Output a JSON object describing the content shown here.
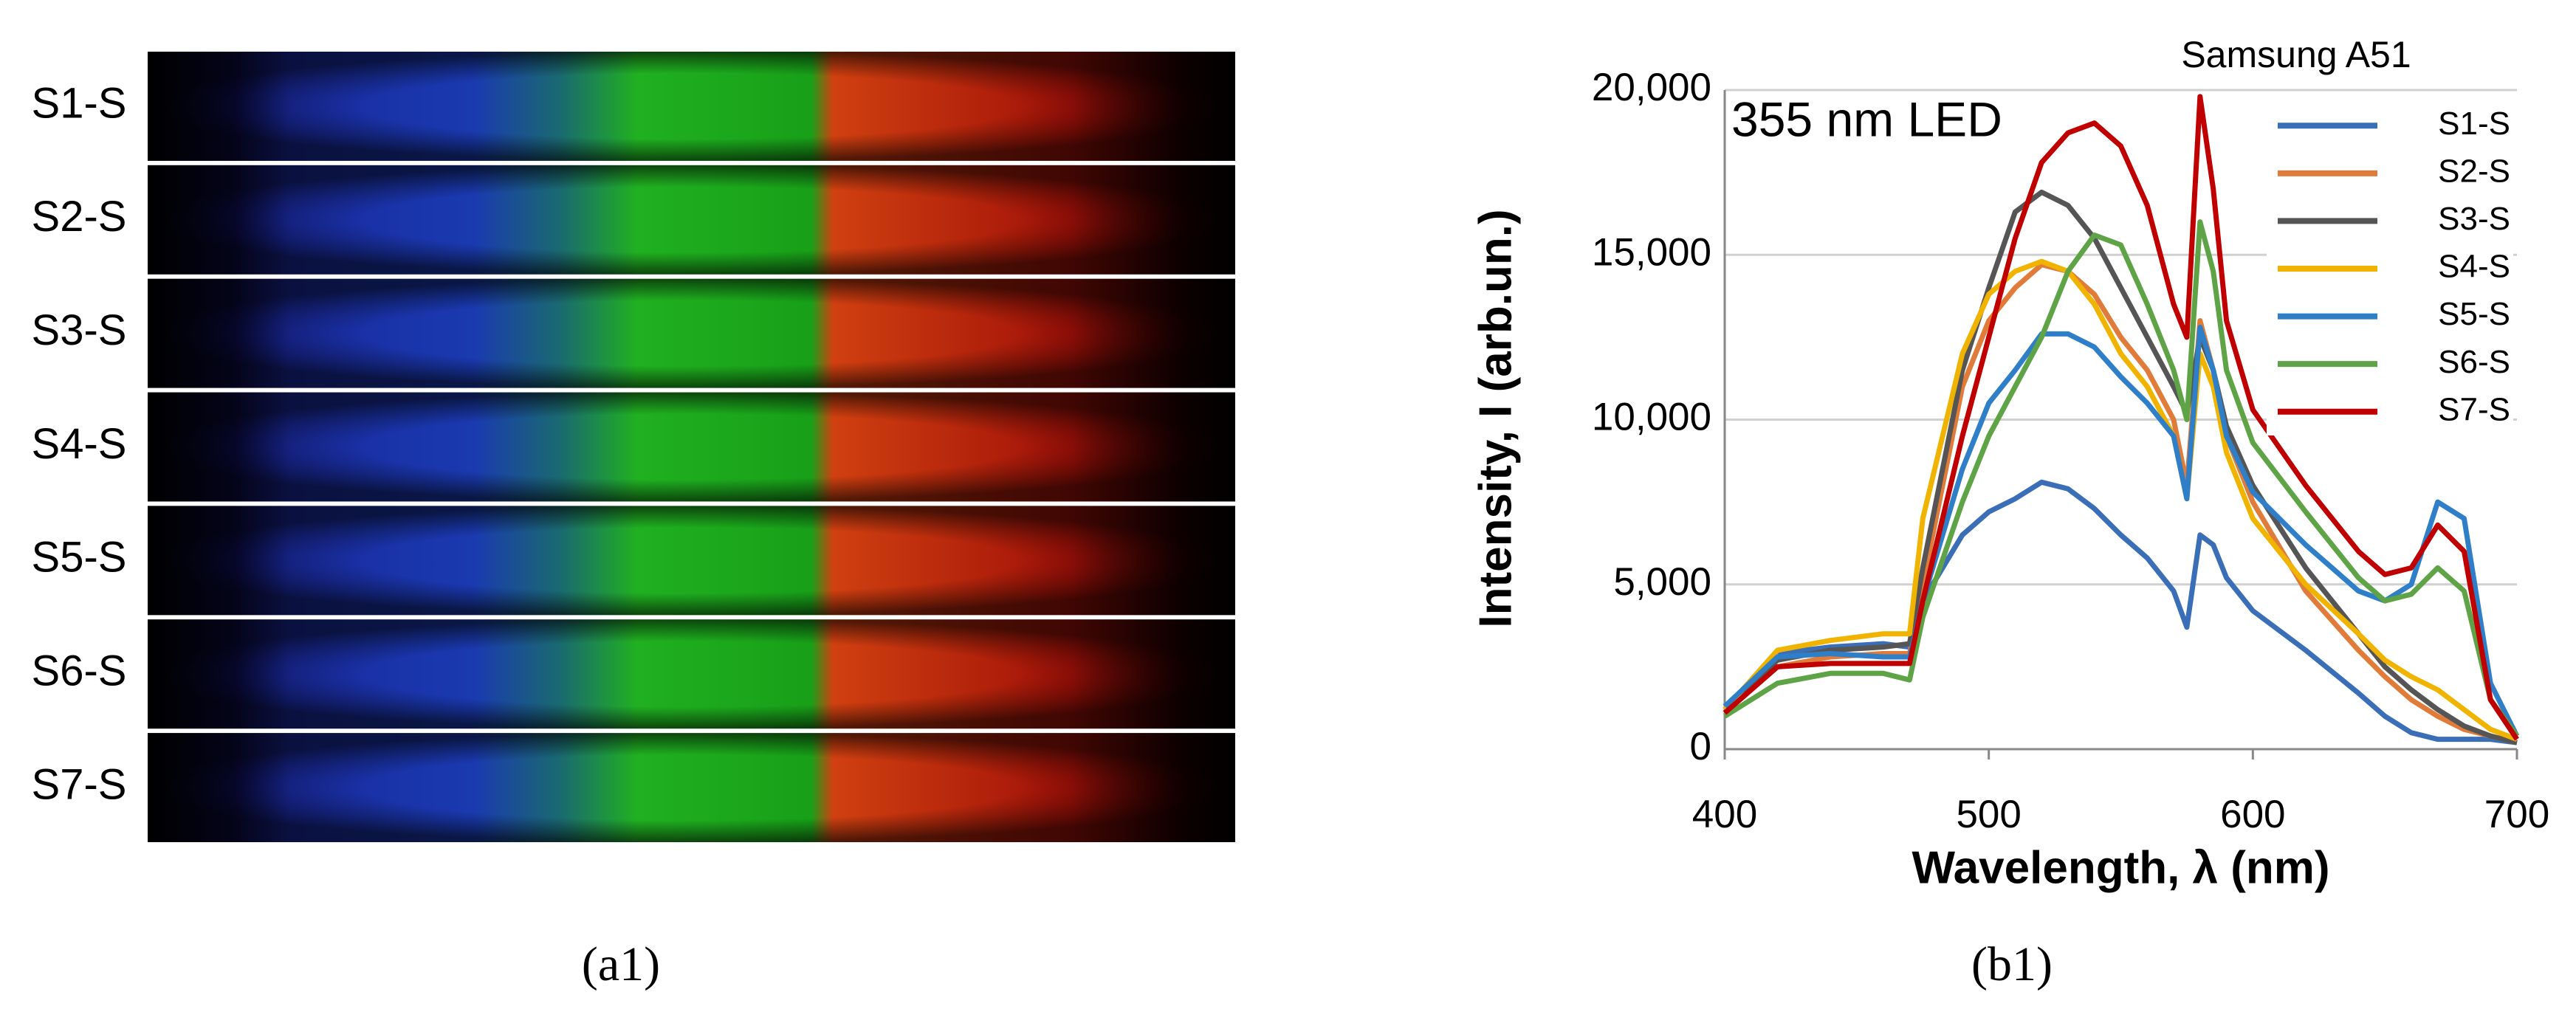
{
  "image_panel": {
    "rows": [
      "S1-S",
      "S2-S",
      "S3-S",
      "S4-S",
      "S5-S",
      "S6-S",
      "S7-S"
    ],
    "caption": "(a1)"
  },
  "chart_data": {
    "type": "line",
    "title": "Samsung A51",
    "annotation": "355 nm LED",
    "x_label": "Wavelength, λ (nm)",
    "y_label": "Intensity, I (arb.un.)",
    "caption": "(b1)",
    "x": [
      400,
      420,
      440,
      460,
      470,
      475,
      490,
      500,
      510,
      520,
      530,
      540,
      550,
      560,
      570,
      575,
      580,
      585,
      590,
      600,
      620,
      640,
      650,
      660,
      670,
      680,
      690,
      700
    ],
    "series": [
      {
        "name": "S1-S",
        "color": "#3a6fb8",
        "values": [
          1200,
          2900,
          3100,
          3200,
          3100,
          4500,
          6500,
          7200,
          7600,
          8100,
          7900,
          7300,
          6500,
          5800,
          4800,
          3700,
          6500,
          6200,
          5200,
          4200,
          3000,
          1700,
          1000,
          500,
          300,
          300,
          300,
          200
        ]
      },
      {
        "name": "S2-S",
        "color": "#e07b39",
        "values": [
          1100,
          2500,
          2800,
          2900,
          2900,
          5000,
          11000,
          13000,
          14000,
          14700,
          14500,
          13800,
          12500,
          11500,
          10000,
          8000,
          13000,
          11500,
          9500,
          7500,
          4800,
          3000,
          2200,
          1500,
          1000,
          600,
          400,
          200
        ]
      },
      {
        "name": "S3-S",
        "color": "#555555",
        "values": [
          1300,
          2700,
          3000,
          3100,
          3200,
          5500,
          11500,
          14000,
          16300,
          16900,
          16500,
          15500,
          14000,
          12500,
          11000,
          10200,
          12500,
          11500,
          9800,
          8000,
          5500,
          3500,
          2500,
          1800,
          1200,
          700,
          400,
          200
        ]
      },
      {
        "name": "S4-S",
        "color": "#f0b400",
        "values": [
          1200,
          3000,
          3300,
          3500,
          3500,
          7000,
          12000,
          13800,
          14500,
          14800,
          14500,
          13500,
          12000,
          11000,
          9500,
          7600,
          12000,
          11000,
          9000,
          7000,
          5000,
          3500,
          2700,
          2200,
          1800,
          1200,
          600,
          300
        ]
      },
      {
        "name": "S5-S",
        "color": "#2e7fc8",
        "values": [
          1300,
          2800,
          2900,
          2800,
          2800,
          4500,
          8500,
          10500,
          11500,
          12600,
          12600,
          12200,
          11300,
          10500,
          9500,
          7600,
          12800,
          11500,
          9500,
          7800,
          6200,
          4800,
          4500,
          5000,
          7500,
          7000,
          2000,
          400
        ]
      },
      {
        "name": "S6-S",
        "color": "#5ea345",
        "values": [
          1000,
          2000,
          2300,
          2300,
          2100,
          4000,
          7500,
          9500,
          11000,
          12500,
          14500,
          15600,
          15300,
          13500,
          11500,
          10000,
          16000,
          14500,
          11500,
          9300,
          7200,
          5200,
          4500,
          4700,
          5500,
          4800,
          1500,
          400
        ]
      },
      {
        "name": "S7-S",
        "color": "#c00000",
        "values": [
          1100,
          2500,
          2600,
          2600,
          2600,
          4500,
          9500,
          12500,
          15500,
          17800,
          18700,
          19000,
          18300,
          16500,
          13500,
          12500,
          19800,
          17000,
          13000,
          10300,
          8000,
          6000,
          5300,
          5500,
          6800,
          6000,
          1500,
          300
        ]
      }
    ],
    "xlim": [
      400,
      700
    ],
    "xticks": [
      400,
      500,
      600,
      700
    ],
    "ylim": [
      0,
      20000
    ],
    "yticks": [
      0,
      {
        "value": 5000,
        "label": "5,000"
      },
      {
        "value": 10000,
        "label": "10,000"
      },
      {
        "value": 15000,
        "label": "15,000"
      },
      {
        "value": 20000,
        "label": "20,000"
      }
    ],
    "grid": true,
    "legend": "upper right"
  }
}
